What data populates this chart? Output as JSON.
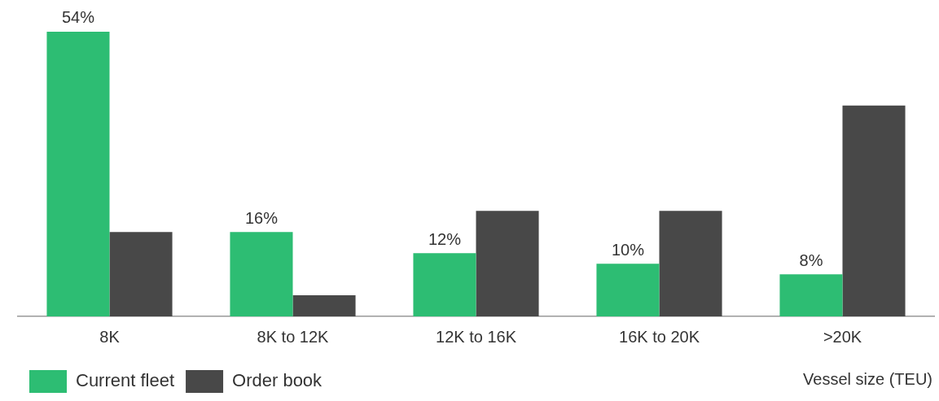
{
  "chart_data": {
    "type": "bar",
    "xlabel": "Vessel size (TEU)",
    "categories": [
      "8K",
      "8K to 12K",
      "12K to 16K",
      "16K to 20K",
      ">20K"
    ],
    "series": [
      {
        "name": "Current fleet",
        "color": "#2dbd73",
        "values": [
          54,
          16,
          12,
          10,
          8
        ],
        "value_labels": [
          "54%",
          "16%",
          "12%",
          "10%",
          "8%"
        ]
      },
      {
        "name": "Order book",
        "color": "#484848",
        "values": [
          16,
          4,
          20,
          20,
          40
        ]
      }
    ],
    "tick_labels": "x",
    "grid": false,
    "legend": "bottom left"
  }
}
